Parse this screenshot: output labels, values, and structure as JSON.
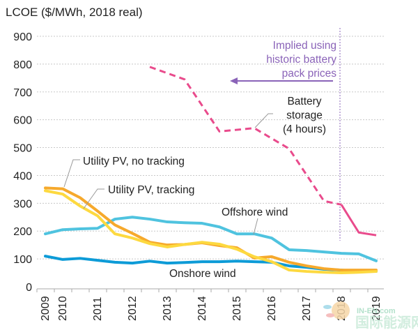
{
  "chart_data": {
    "type": "line",
    "title": "",
    "ylabel": "LCOE ($/MWh, 2018 real)",
    "xlabel": "",
    "ylim": [
      0,
      900
    ],
    "yticks": [
      0,
      100,
      200,
      300,
      400,
      500,
      600,
      700,
      800,
      900
    ],
    "grid": true,
    "x": [
      "2009",
      "2010",
      "2010H2",
      "2011",
      "2011H2",
      "2012",
      "2012H2",
      "2013",
      "2013H2",
      "2014",
      "2014H2",
      "2015",
      "2015H2",
      "2016",
      "2016H2",
      "2017",
      "2017H2",
      "2018",
      "2018H2",
      "2019"
    ],
    "xtick_labels": [
      "2009",
      "2010",
      "2011",
      "2012",
      "2013",
      "2014",
      "2015",
      "2016",
      "2017",
      "2018",
      "2019"
    ],
    "series": [
      {
        "name": "Onshore wind",
        "color": "#0d9bd7",
        "style": "solid",
        "values": [
          110,
          98,
          102,
          95,
          88,
          85,
          92,
          85,
          87,
          90,
          90,
          92,
          90,
          88,
          75,
          70,
          63,
          60,
          55,
          55
        ]
      },
      {
        "name": "Offshore wind",
        "color": "#4fc3df",
        "style": "solid",
        "values": [
          190,
          205,
          208,
          210,
          243,
          250,
          243,
          233,
          230,
          228,
          215,
          190,
          190,
          175,
          133,
          130,
          125,
          120,
          118,
          93
        ]
      },
      {
        "name": "Utility PV, no tracking",
        "color": "#f6a92c",
        "style": "solid",
        "values": [
          355,
          352,
          320,
          272,
          222,
          192,
          160,
          150,
          152,
          158,
          148,
          140,
          103,
          108,
          88,
          75,
          65,
          60,
          60,
          60
        ]
      },
      {
        "name": "Utility PV, tracking",
        "color": "#fdd940",
        "style": "solid",
        "values": [
          345,
          333,
          290,
          255,
          190,
          175,
          155,
          143,
          152,
          160,
          153,
          135,
          108,
          90,
          60,
          55,
          52,
          50,
          52,
          55
        ]
      },
      {
        "name": "Battery storage (4 hours)",
        "color": "#e94b8c",
        "style": "dashed-then-solid",
        "points": [
          {
            "x": "2012H2",
            "y": 790,
            "implied": true
          },
          {
            "x": "2013H2",
            "y": 745,
            "implied": true
          },
          {
            "x": "2014H2",
            "y": 558,
            "implied": true
          },
          {
            "x": "2015H2",
            "y": 570,
            "implied": true
          },
          {
            "x": "2016H2",
            "y": 496,
            "implied": true
          },
          {
            "x": "2017H2",
            "y": 308,
            "implied": true
          },
          {
            "x": "2018",
            "y": 295,
            "implied": false
          },
          {
            "x": "2018H2",
            "y": 195,
            "implied": false
          },
          {
            "x": "2019",
            "y": 185,
            "implied": false
          }
        ]
      }
    ],
    "annotations": [
      {
        "text": "Utility PV, no tracking",
        "target": "Utility PV, no tracking"
      },
      {
        "text": "Utility PV, tracking",
        "target": "Utility PV, tracking"
      },
      {
        "text": "Offshore wind",
        "target": "Offshore wind"
      },
      {
        "text": "Onshore wind",
        "target": "Onshore wind"
      },
      {
        "lines": [
          "Battery",
          "storage",
          "(4 hours)"
        ],
        "target": "Battery storage (4 hours)"
      },
      {
        "lines": [
          "Implied using",
          "historic battery",
          "pack prices"
        ],
        "color": "#8a63b8",
        "arrow": "left",
        "divider_at": "2018"
      }
    ]
  },
  "watermark": {
    "line1": "IN-EN.com",
    "line2": "国际能源网"
  }
}
